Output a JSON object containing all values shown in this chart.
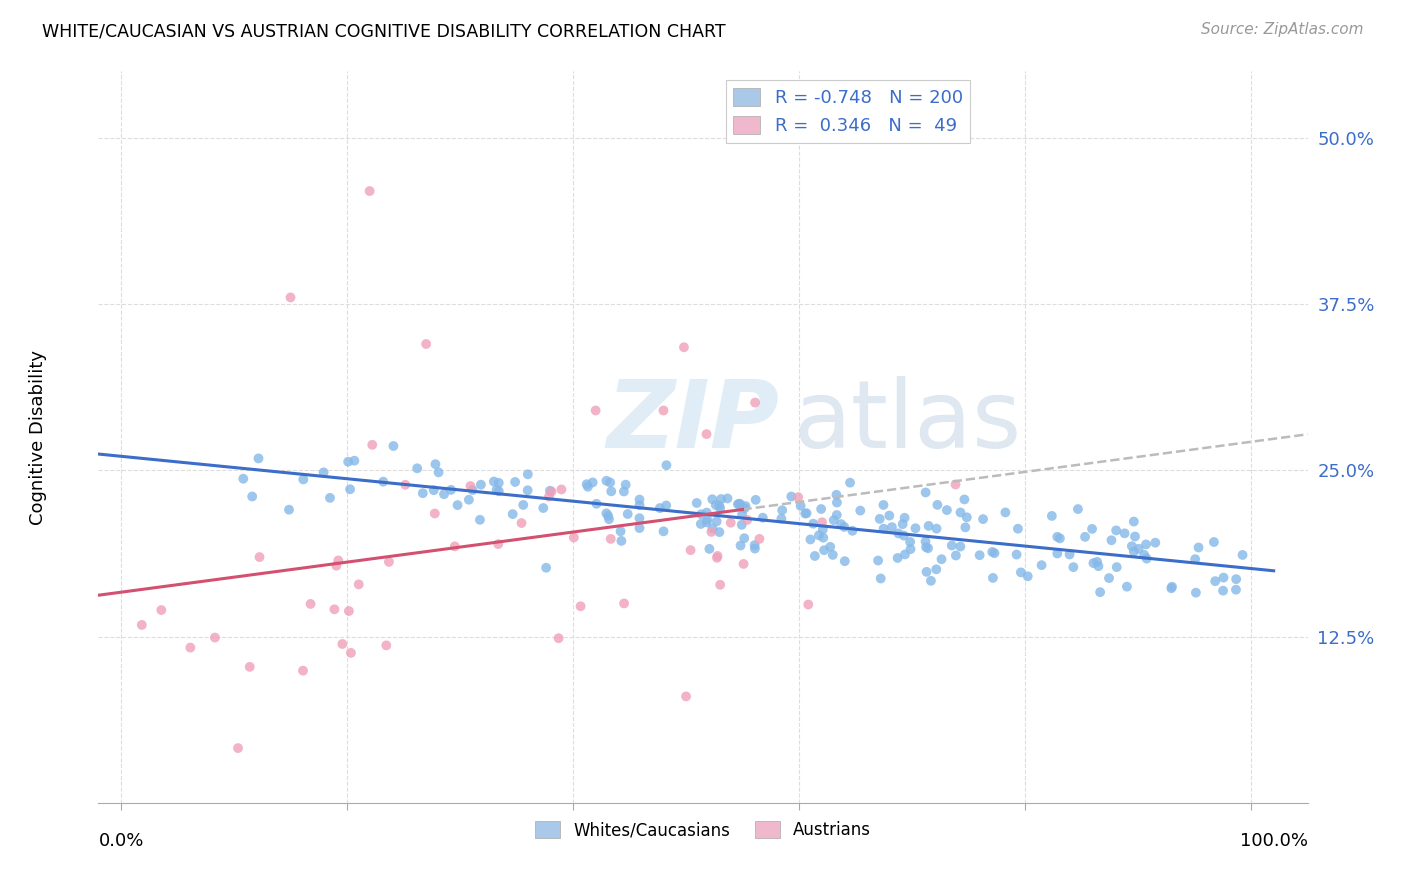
{
  "title": "WHITE/CAUCASIAN VS AUSTRIAN COGNITIVE DISABILITY CORRELATION CHART",
  "source": "Source: ZipAtlas.com",
  "ylabel": "Cognitive Disability",
  "ytick_labels": [
    "12.5%",
    "25.0%",
    "37.5%",
    "50.0%"
  ],
  "ytick_values": [
    0.125,
    0.25,
    0.375,
    0.5
  ],
  "xlim": [
    0.0,
    1.0
  ],
  "ylim": [
    0.0,
    0.55
  ],
  "blue_line_color": "#3c6dc8",
  "pink_line_color": "#d45070",
  "blue_dot_color": "#85b8e8",
  "pink_dot_color": "#f0a0b8",
  "blue_legend_color": "#aac8e8",
  "pink_legend_color": "#f0b8cc",
  "R_blue": -0.748,
  "N_blue": 200,
  "R_pink": 0.346,
  "N_pink": 49,
  "watermark_zip": "ZIP",
  "watermark_atlas": "atlas",
  "bottom_legend_blue": "Whites/Caucasians",
  "bottom_legend_pink": "Austrians",
  "grid_color": "#dddddd",
  "dashed_line_color": "#bbbbbb",
  "axis_label_color": "#3c6dc8",
  "text_color": "#333333"
}
